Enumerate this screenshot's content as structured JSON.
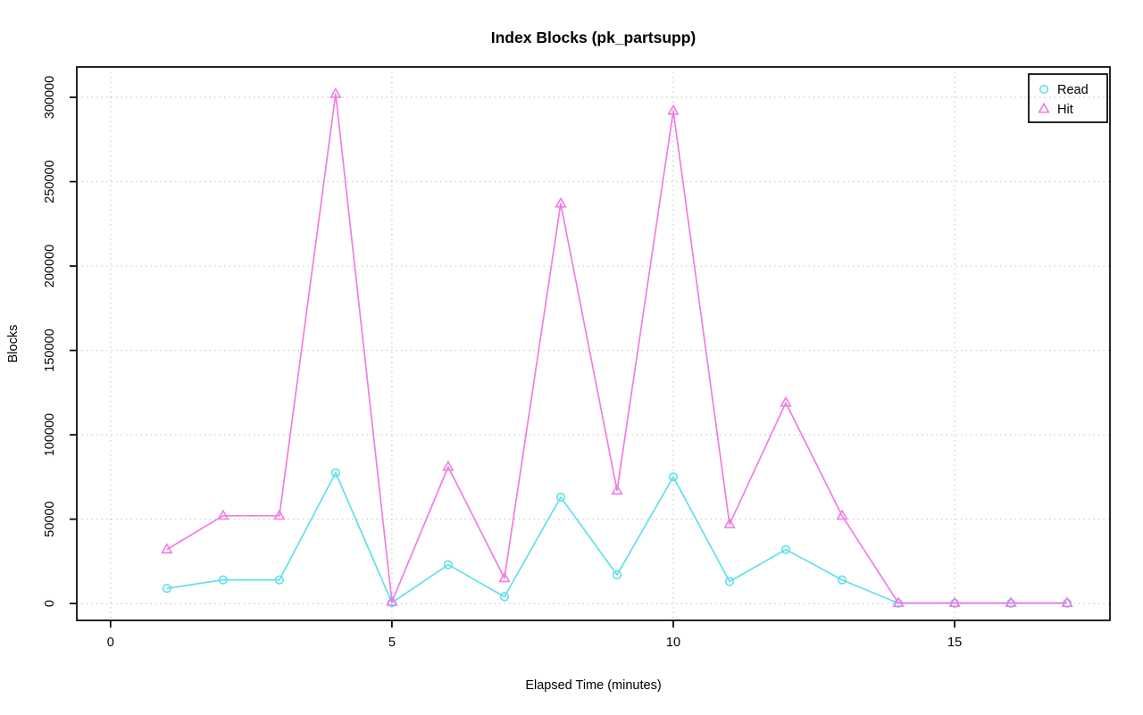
{
  "page": {
    "background": "#ffffff"
  },
  "chart_data": {
    "type": "line",
    "title": "Index Blocks (pk_partsupp)",
    "xlabel": "Elapsed Time (minutes)",
    "ylabel": "Blocks",
    "x": [
      1,
      2,
      3,
      4,
      5,
      6,
      7,
      8,
      9,
      10,
      11,
      12,
      13,
      14,
      15,
      16,
      17
    ],
    "series": [
      {
        "name": "Read",
        "marker": "circle",
        "color": "#5fe1eb",
        "values": [
          9000,
          14000,
          14000,
          77500,
          500,
          23000,
          4000,
          63000,
          17000,
          75000,
          13000,
          32000,
          14000,
          100,
          100,
          100,
          100
        ]
      },
      {
        "name": "Hit",
        "marker": "triangle",
        "color": "#f17de4",
        "values": [
          32000,
          52000,
          52000,
          302000,
          1000,
          81000,
          15000,
          237000,
          67000,
          292000,
          47000,
          119000,
          52000,
          300,
          300,
          300,
          300
        ]
      }
    ],
    "xticks": [
      0,
      5,
      10,
      15
    ],
    "yticks": [
      0,
      50000,
      100000,
      150000,
      200000,
      250000,
      300000
    ],
    "xlim": [
      -0.6,
      17.76
    ],
    "ylim": [
      -10000,
      318000
    ],
    "grid": true,
    "grid_color": "#c9c9c9",
    "axis_color": "#000000",
    "legend_position": "top-right",
    "legend_items": [
      "Read",
      "Hit"
    ]
  }
}
